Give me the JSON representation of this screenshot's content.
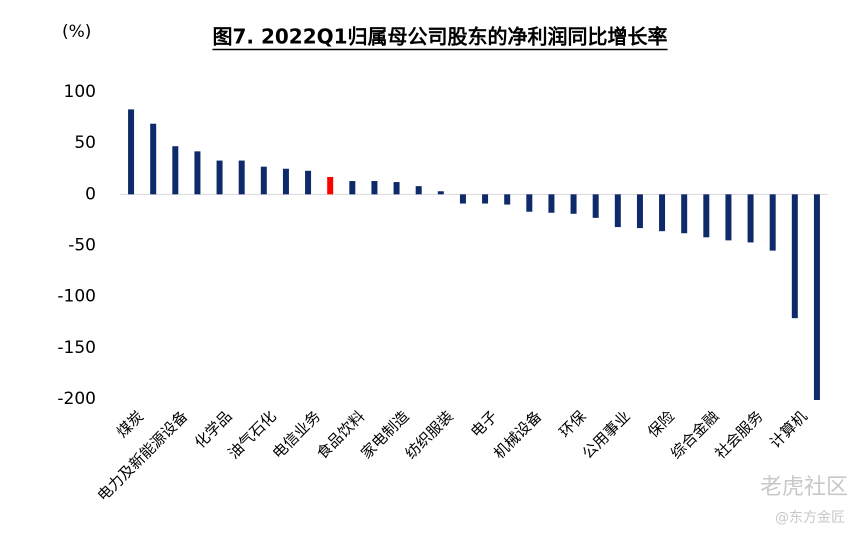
{
  "chart_data": {
    "type": "bar",
    "title": "图7. 2022Q1归属母公司股东的净利润同比增长率",
    "y_label": "(%)",
    "categories": [
      "煤炭",
      null,
      "电力及新能源设备",
      null,
      "化学品",
      null,
      "油气石化",
      null,
      "电信业务",
      null,
      "食品饮料",
      null,
      "家电制造",
      null,
      "纺织服装",
      null,
      "电子",
      null,
      "机械设备",
      null,
      "环保",
      null,
      "公用事业",
      null,
      "保险",
      null,
      "综合金融",
      null,
      "社会服务",
      null,
      "计算机",
      null
    ],
    "values": [
      83,
      69,
      47,
      42,
      33,
      33,
      27,
      25,
      23,
      17,
      13,
      13,
      12,
      8,
      3,
      -9,
      -9,
      -10,
      -17,
      -18,
      -19,
      -23,
      -32,
      -33,
      -36,
      -38,
      -42,
      -45,
      -47,
      -55,
      -121,
      -201
    ],
    "colors": [
      "#0f2a6b",
      "#0f2a6b",
      "#0f2a6b",
      "#0f2a6b",
      "#0f2a6b",
      "#0f2a6b",
      "#0f2a6b",
      "#0f2a6b",
      "#0f2a6b",
      "#ff0000",
      "#0f2a6b",
      "#0f2a6b",
      "#0f2a6b",
      "#0f2a6b",
      "#0f2a6b",
      "#0f2a6b",
      "#0f2a6b",
      "#0f2a6b",
      "#0f2a6b",
      "#0f2a6b",
      "#0f2a6b",
      "#0f2a6b",
      "#0f2a6b",
      "#0f2a6b",
      "#0f2a6b",
      "#0f2a6b",
      "#0f2a6b",
      "#0f2a6b",
      "#0f2a6b",
      "#0f2a6b",
      "#0f2a6b",
      "#0f2a6b"
    ],
    "ylim": [
      -200,
      100
    ],
    "yticks": [
      100,
      50,
      0,
      -50,
      -100,
      -150,
      -200
    ],
    "grid": false,
    "axis_color": "#d9d9d9",
    "watermarks": [
      "老虎社区",
      "@东方金匠"
    ]
  }
}
